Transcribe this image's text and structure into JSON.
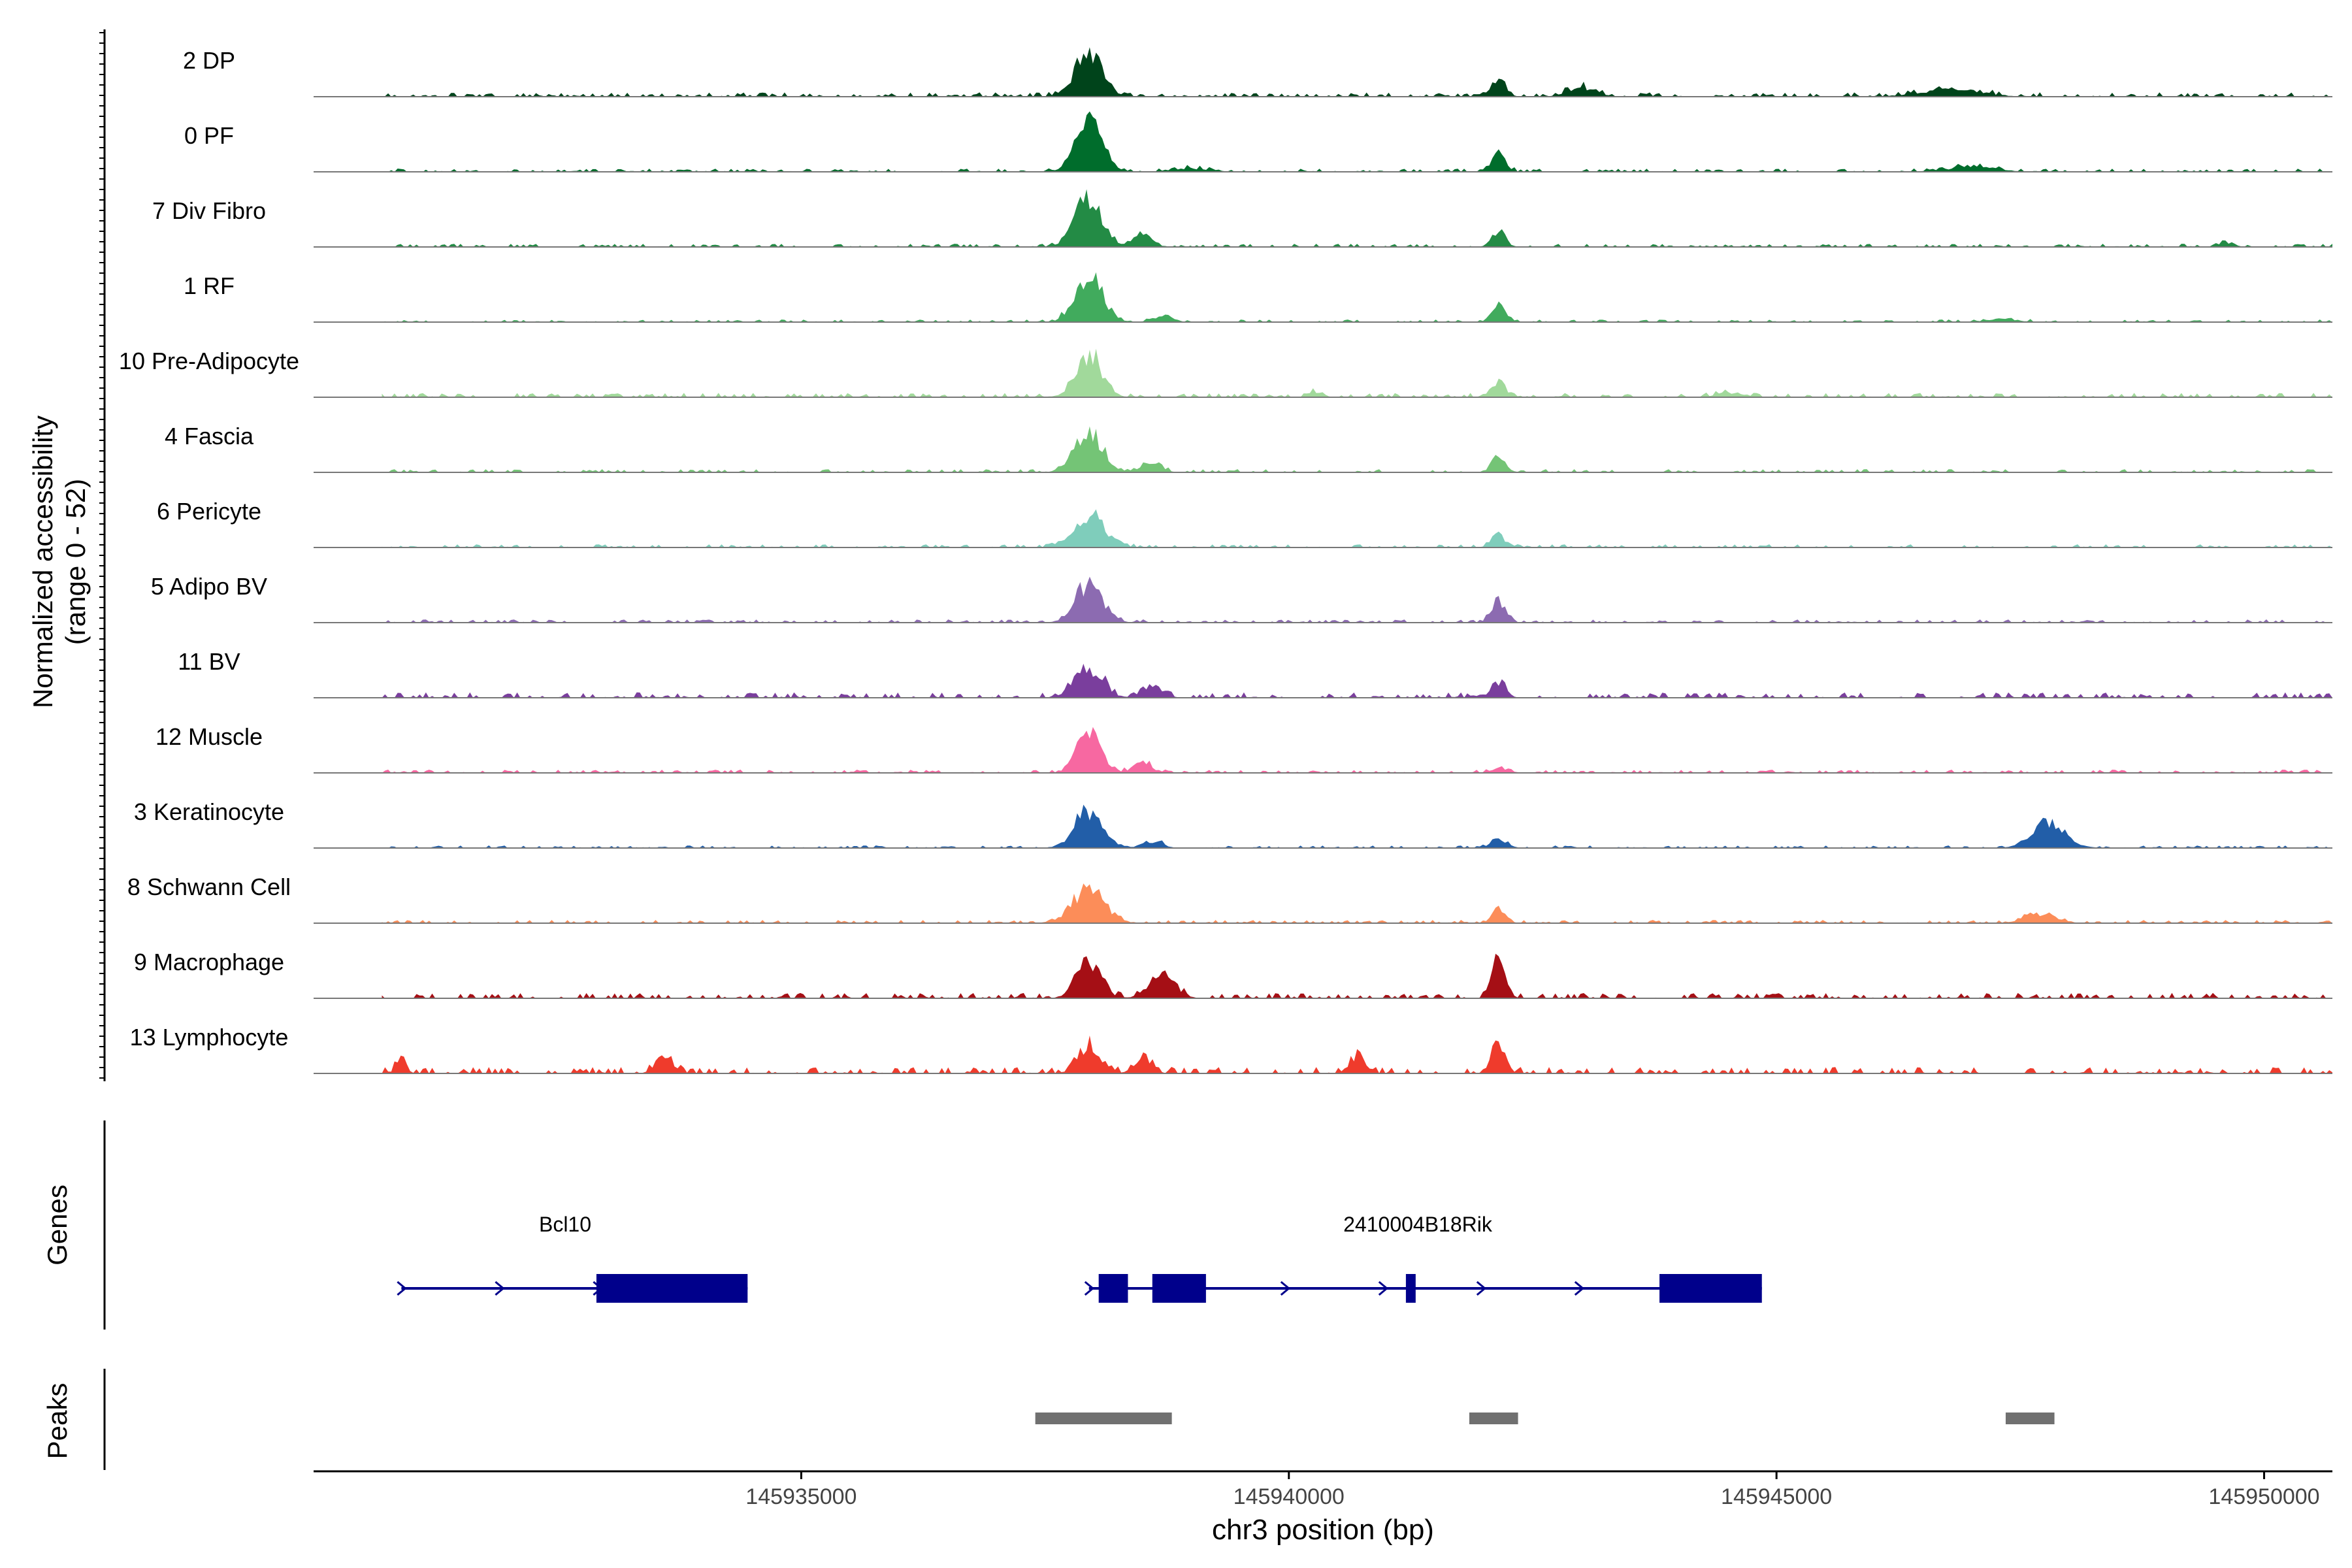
{
  "chart_data": {
    "type": "area",
    "title": "",
    "chromosome": "chr3",
    "xlabel": "chr3 position (bp)",
    "ylabel": "Normalized accessibility",
    "ylabel_range": "(range 0 - 52)",
    "y_range": [
      0,
      52
    ],
    "x_range": [
      145930000,
      145950700
    ],
    "x_ticks": [
      145935000,
      145940000,
      145945000,
      145950000
    ],
    "x_tick_labels": [
      "145935000",
      "145940000",
      "145945000",
      "145950000"
    ],
    "tracks": [
      {
        "name": "2 DP",
        "color": "#00441b",
        "peaks": [
          [
            145937950,
            40,
            140
          ],
          [
            145942150,
            15,
            70
          ],
          [
            145943000,
            8,
            140
          ],
          [
            145946800,
            6,
            300
          ]
        ],
        "noise": 2.0,
        "seed": 1
      },
      {
        "name": "0 PF",
        "color": "#006d2c",
        "peaks": [
          [
            145937950,
            42,
            140
          ],
          [
            145942150,
            16,
            70
          ],
          [
            145939000,
            3,
            200
          ],
          [
            145947000,
            4,
            250
          ]
        ],
        "noise": 1.5,
        "seed": 2
      },
      {
        "name": "7 Div Fibro",
        "color": "#238b45",
        "peaks": [
          [
            145937950,
            44,
            140
          ],
          [
            145942150,
            14,
            70
          ],
          [
            145938500,
            10,
            100
          ],
          [
            145949600,
            4,
            80
          ]
        ],
        "noise": 1.5,
        "seed": 3
      },
      {
        "name": "1 RF",
        "color": "#41ab5d",
        "peaks": [
          [
            145937950,
            42,
            140
          ],
          [
            145942150,
            18,
            70
          ],
          [
            145938700,
            5,
            100
          ],
          [
            145947300,
            3,
            150
          ]
        ],
        "noise": 1.2,
        "seed": 4
      },
      {
        "name": "10 Pre-Adipocyte",
        "color": "#a1d99b",
        "peaks": [
          [
            145937950,
            38,
            130
          ],
          [
            145942150,
            14,
            70
          ],
          [
            145940300,
            5,
            60
          ],
          [
            145944500,
            4,
            120
          ]
        ],
        "noise": 2.0,
        "seed": 5
      },
      {
        "name": "4 Fascia",
        "color": "#74c476",
        "peaks": [
          [
            145937950,
            36,
            140
          ],
          [
            145942150,
            14,
            70
          ],
          [
            145938600,
            10,
            90
          ]
        ],
        "noise": 1.5,
        "seed": 6
      },
      {
        "name": "6 Pericyte",
        "color": "#7fcdbb",
        "peaks": [
          [
            145937950,
            28,
            160
          ],
          [
            145942150,
            11,
            70
          ]
        ],
        "noise": 1.5,
        "seed": 7
      },
      {
        "name": "5 Adipo BV",
        "color": "#8c6bb1",
        "peaks": [
          [
            145937950,
            34,
            140
          ],
          [
            145942150,
            20,
            70
          ]
        ],
        "noise": 1.5,
        "seed": 8
      },
      {
        "name": "11 BV",
        "color": "#7a3e9d",
        "peaks": [
          [
            145937950,
            26,
            140
          ],
          [
            145942150,
            14,
            70
          ],
          [
            145938600,
            10,
            110
          ]
        ],
        "noise": 2.5,
        "seed": 9
      },
      {
        "name": "12 Muscle",
        "color": "#f768a1",
        "peaks": [
          [
            145937950,
            36,
            120
          ],
          [
            145938500,
            8,
            100
          ],
          [
            145942150,
            4,
            80
          ]
        ],
        "noise": 1.5,
        "seed": 10
      },
      {
        "name": "3 Keratinocyte",
        "color": "#225ea8",
        "peaks": [
          [
            145937950,
            32,
            140
          ],
          [
            145938600,
            6,
            100
          ],
          [
            145942150,
            8,
            80
          ],
          [
            145947800,
            22,
            170
          ]
        ],
        "noise": 1.2,
        "seed": 11
      },
      {
        "name": "8 Schwann Cell",
        "color": "#fc8d59",
        "peaks": [
          [
            145937950,
            28,
            170
          ],
          [
            145942150,
            11,
            70
          ],
          [
            145947700,
            8,
            160
          ]
        ],
        "noise": 1.5,
        "seed": 12
      },
      {
        "name": "9 Macrophage",
        "color": "#a50f15",
        "peaks": [
          [
            145937950,
            30,
            130
          ],
          [
            145938700,
            20,
            130
          ],
          [
            145942150,
            32,
            70
          ]
        ],
        "noise": 2.5,
        "seed": 13
      },
      {
        "name": "13 Lymphocyte",
        "color": "#ef3b2c",
        "peaks": [
          [
            145937950,
            26,
            110
          ],
          [
            145938500,
            16,
            80
          ],
          [
            145942150,
            28,
            70
          ],
          [
            145933600,
            14,
            90
          ],
          [
            145930900,
            14,
            50
          ],
          [
            145940700,
            16,
            80
          ]
        ],
        "noise": 3.0,
        "seed": 14
      }
    ],
    "genes_label": "Genes",
    "genes": [
      {
        "name": "Bcl10",
        "start": 145930900,
        "end": 145934450,
        "strand": "+",
        "exons": [
          [
            145932900,
            145934450
          ]
        ]
      },
      {
        "name": "2410004B18Rik",
        "start": 145937950,
        "end": 145944850,
        "strand": "+",
        "exons": [
          [
            145938050,
            145938350
          ],
          [
            145938600,
            145939150
          ],
          [
            145941200,
            145941300
          ],
          [
            145943800,
            145944850
          ]
        ]
      }
    ],
    "peaks_label": "Peaks",
    "peak_regions": [
      [
        145937400,
        145938800
      ],
      [
        145941850,
        145942350
      ],
      [
        145947350,
        145947850
      ]
    ]
  }
}
